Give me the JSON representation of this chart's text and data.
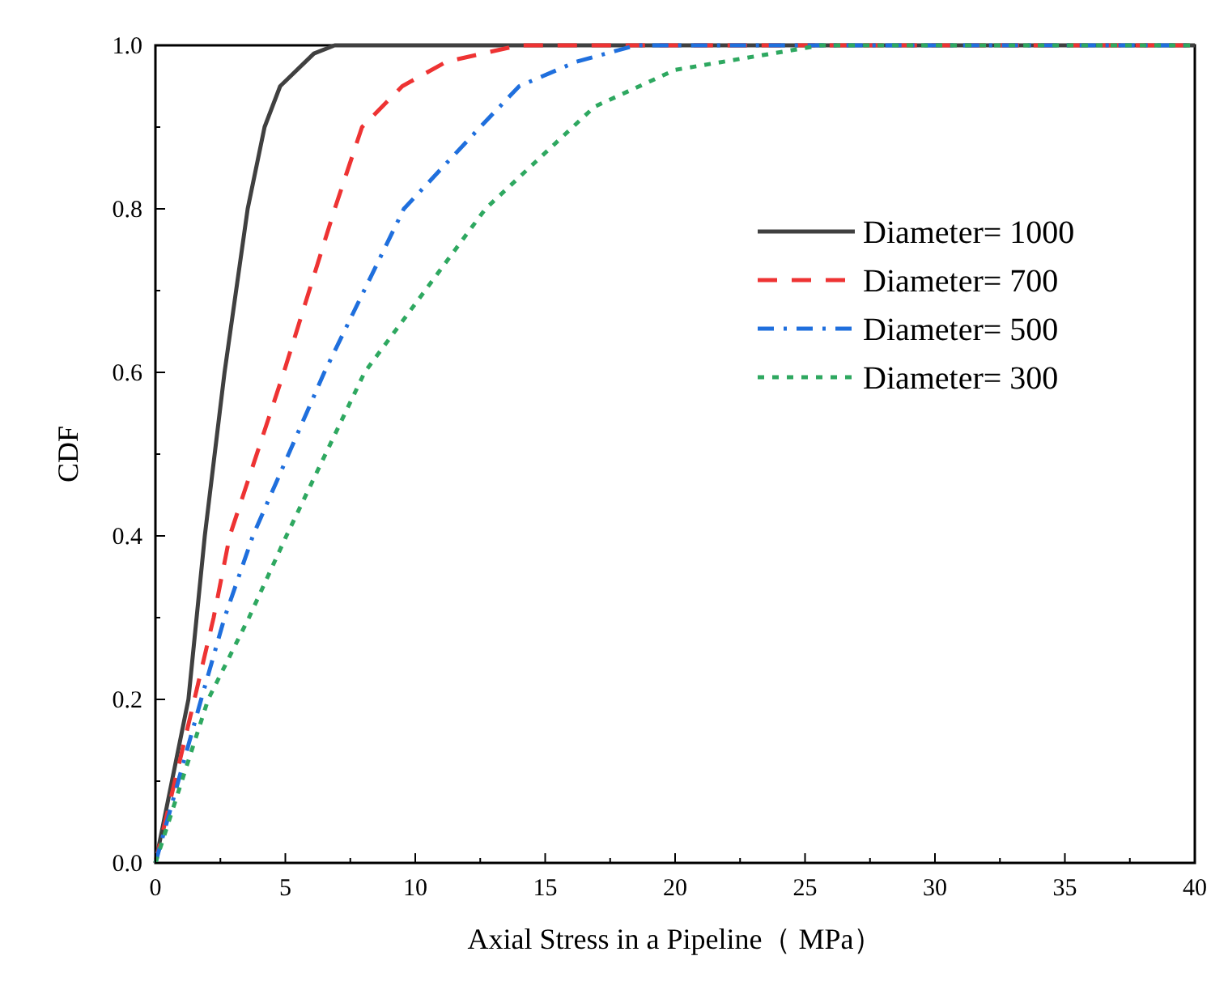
{
  "chart_data": {
    "type": "line",
    "xlabel": "Axial Stress in a Pipeline（ MPa）",
    "ylabel": "CDF",
    "xlim": [
      0,
      40
    ],
    "ylim": [
      0,
      1
    ],
    "xticks": [
      0,
      5,
      10,
      15,
      20,
      25,
      30,
      35,
      40
    ],
    "yticks": [
      {
        "value": 0,
        "label": "0.0"
      },
      {
        "value": 0.2,
        "label": "0.2"
      },
      {
        "value": 0.4,
        "label": "0.4"
      },
      {
        "value": 0.6,
        "label": "0.6"
      },
      {
        "value": 0.8,
        "label": "0.8"
      },
      {
        "value": 1,
        "label": "1.0"
      }
    ],
    "grid": false,
    "legend": "top right",
    "series": [
      {
        "name": "Diameter= 1000",
        "color": "#404040",
        "line_style": "solid",
        "x": [
          0,
          1.27,
          1.9,
          2.66,
          3.55,
          4.2,
          4.8,
          6.1,
          6.9,
          40
        ],
        "values": [
          0,
          0.2,
          0.4,
          0.6,
          0.8,
          0.9,
          0.95,
          0.99,
          1,
          1
        ]
      },
      {
        "name": "Diameter= 700",
        "color": "#ee3333",
        "line_style": "dashed",
        "x": [
          0,
          1.5,
          2.24,
          2.86,
          4.94,
          6.9,
          7.95,
          9.5,
          11.2,
          14,
          40
        ],
        "values": [
          0,
          0.2,
          0.3,
          0.4,
          0.6,
          0.8,
          0.9,
          0.95,
          0.98,
          1,
          1
        ]
      },
      {
        "name": "Diameter= 500",
        "color": "#1f6fdd",
        "line_style": "dashdot",
        "x": [
          0,
          1.76,
          2.66,
          3.75,
          6.5,
          9.56,
          12.5,
          14,
          16.2,
          18.5,
          40
        ],
        "values": [
          0,
          0.2,
          0.3,
          0.4,
          0.6,
          0.8,
          0.9,
          0.95,
          0.98,
          1,
          1
        ]
      },
      {
        "name": "Diameter= 300",
        "color": "#2ea860",
        "line_style": "dotted",
        "x": [
          0,
          2.03,
          3.6,
          5.04,
          8.05,
          12.7,
          16.9,
          20,
          25.6,
          40
        ],
        "values": [
          0,
          0.2,
          0.3,
          0.4,
          0.6,
          0.8,
          0.925,
          0.97,
          1,
          1
        ]
      }
    ]
  }
}
